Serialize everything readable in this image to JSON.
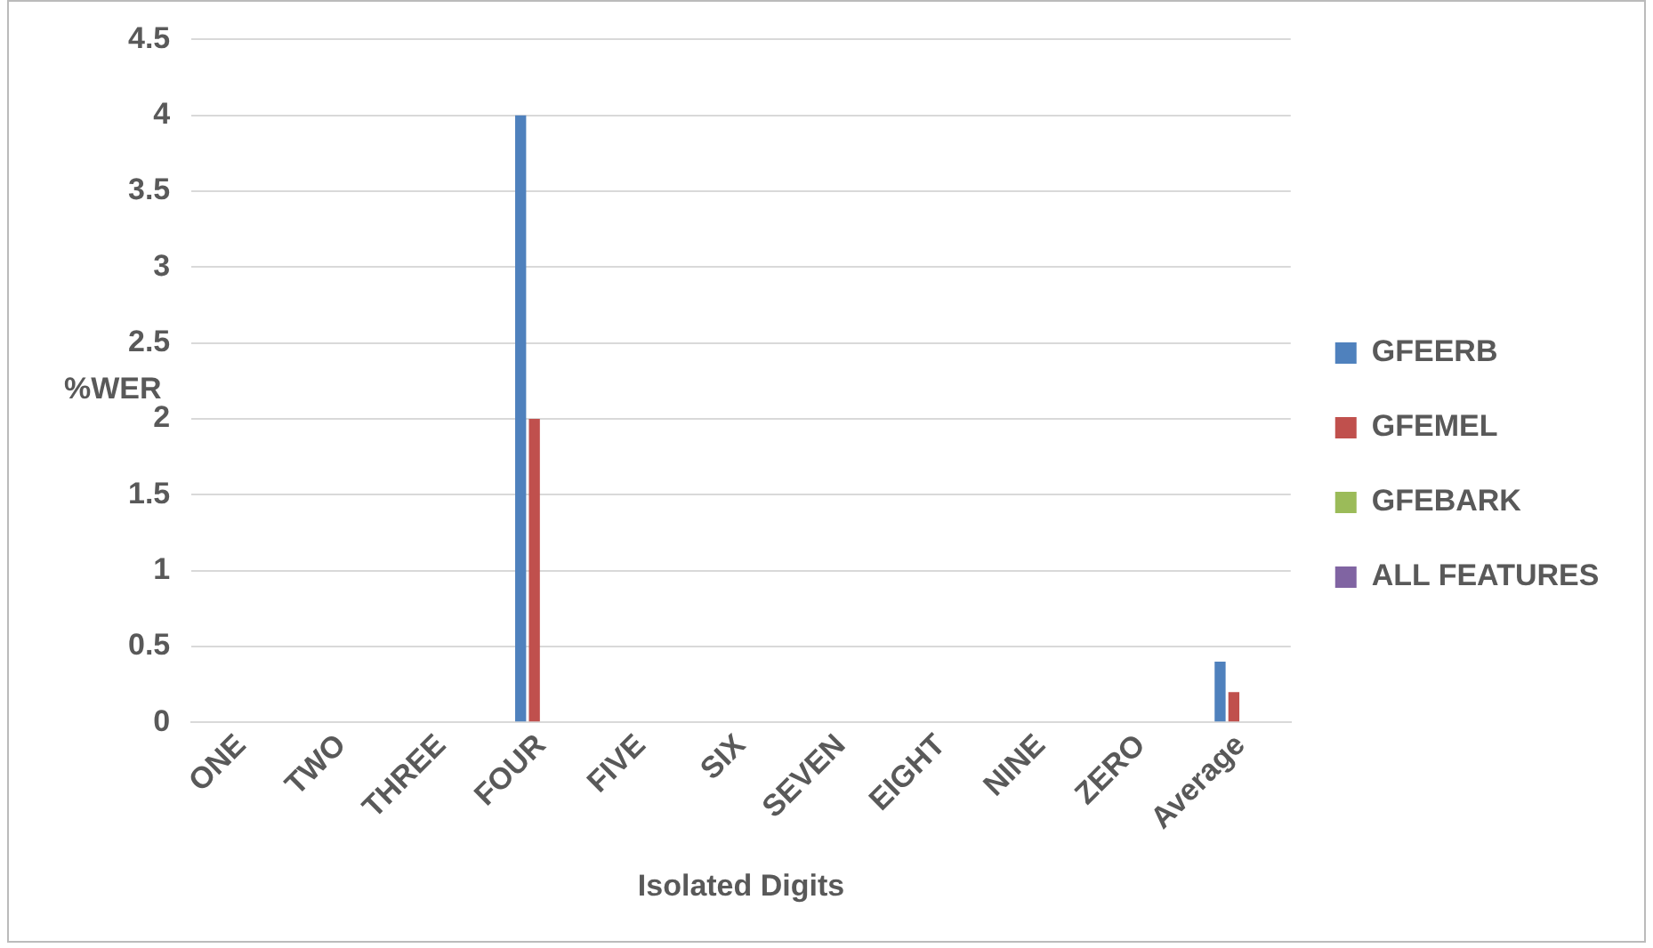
{
  "chart_data": {
    "type": "bar",
    "xlabel": "Isolated Digits",
    "ylabel": "%WER",
    "categories": [
      "ONE",
      "TWO",
      "THREE",
      "FOUR",
      "FIVE",
      "SIX",
      "SEVEN",
      "EIGHT",
      "NINE",
      "ZERO",
      "Average"
    ],
    "series": [
      {
        "name": "GFEERB",
        "color": "#4f81bd",
        "values": [
          0,
          0,
          0,
          4,
          0,
          0,
          0,
          0,
          0,
          0,
          0.4
        ]
      },
      {
        "name": "GFEMEL",
        "color": "#c0504d",
        "values": [
          0,
          0,
          0,
          2,
          0,
          0,
          0,
          0,
          0,
          0,
          0.2
        ]
      },
      {
        "name": "GFEBARK",
        "color": "#9bbb59",
        "values": [
          0,
          0,
          0,
          0,
          0,
          0,
          0,
          0,
          0,
          0,
          0
        ]
      },
      {
        "name": "ALL FEATURES",
        "color": "#8064a2",
        "values": [
          0,
          0,
          0,
          0,
          0,
          0,
          0,
          0,
          0,
          0,
          0
        ]
      }
    ],
    "ylim": [
      0,
      4.5
    ],
    "yticks": [
      0,
      0.5,
      1,
      1.5,
      2,
      2.5,
      3,
      3.5,
      4,
      4.5
    ],
    "grid": "y",
    "legend": "right"
  }
}
